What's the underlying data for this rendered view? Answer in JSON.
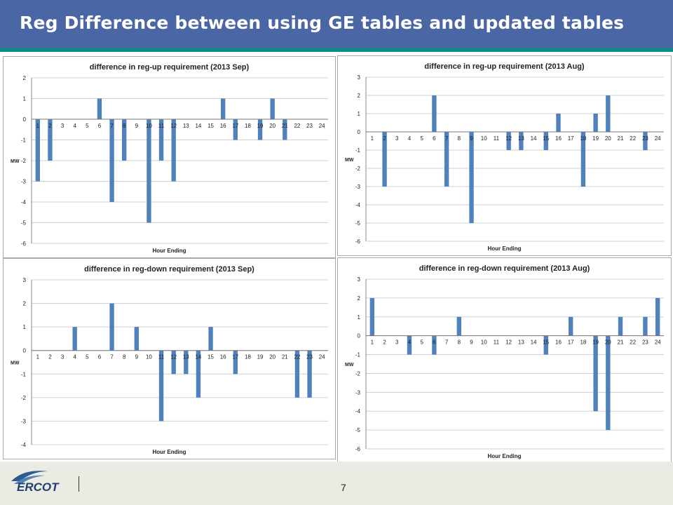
{
  "slide": {
    "title": "Reg Difference between using GE tables and updated tables",
    "page_number": "7",
    "logo_text": "ERCOT"
  },
  "colors": {
    "header": "#4a66a5",
    "accent_bar": "#128a8a",
    "bar": "#4f81bd",
    "grid": "#d0d0d0",
    "footer": "#ebebe3"
  },
  "chart_data": [
    {
      "type": "bar",
      "title": "difference in reg-up requirement (2013 Sep)",
      "xlabel": "Hour  Ending",
      "ylabel": "MW",
      "categories": [
        "1",
        "2",
        "3",
        "4",
        "5",
        "6",
        "7",
        "8",
        "9",
        "10",
        "11",
        "12",
        "13",
        "14",
        "15",
        "16",
        "17",
        "18",
        "19",
        "20",
        "21",
        "22",
        "23",
        "24"
      ],
      "values": [
        -3,
        -2,
        0,
        0,
        0,
        1,
        -4,
        -2,
        0,
        -5,
        -2,
        -3,
        0,
        0,
        0,
        1,
        -1,
        0,
        -1,
        1,
        -1,
        0,
        0,
        0
      ],
      "ylim": [
        -6,
        2
      ],
      "yticks": [
        2,
        1,
        0,
        -1,
        -2,
        -3,
        -4,
        -5,
        -6
      ],
      "grid": true
    },
    {
      "type": "bar",
      "title": "difference in reg-up requirement (2013 Aug)",
      "xlabel": "Hour  Ending",
      "ylabel": "MW",
      "categories": [
        "1",
        "2",
        "3",
        "4",
        "5",
        "6",
        "7",
        "8",
        "9",
        "10",
        "11",
        "12",
        "13",
        "14",
        "15",
        "16",
        "17",
        "18",
        "19",
        "20",
        "21",
        "22",
        "23",
        "24"
      ],
      "values": [
        0,
        -3,
        0,
        0,
        0,
        2,
        -3,
        0,
        -5,
        0,
        0,
        -1,
        -1,
        0,
        -1,
        1,
        0,
        -3,
        1,
        2,
        0,
        0,
        -1,
        0
      ],
      "ylim": [
        -6,
        3
      ],
      "yticks": [
        3,
        2,
        1,
        0,
        -1,
        -2,
        -3,
        -4,
        -5,
        -6
      ],
      "grid": true
    },
    {
      "type": "bar",
      "title": "difference in reg-down requirement (2013 Sep)",
      "xlabel": "Hour  Ending",
      "ylabel": "MW",
      "categories": [
        "1",
        "2",
        "3",
        "4",
        "5",
        "6",
        "7",
        "8",
        "9",
        "10",
        "11",
        "12",
        "13",
        "14",
        "15",
        "16",
        "17",
        "18",
        "19",
        "20",
        "21",
        "22",
        "23",
        "24"
      ],
      "values": [
        0,
        0,
        0,
        1,
        0,
        0,
        2,
        0,
        1,
        0,
        -3,
        -1,
        -1,
        -2,
        1,
        0,
        -1,
        0,
        0,
        0,
        0,
        -2,
        -2,
        0
      ],
      "ylim": [
        -4,
        3
      ],
      "yticks": [
        3,
        2,
        1,
        0,
        -1,
        -2,
        -3,
        -4
      ],
      "grid": true
    },
    {
      "type": "bar",
      "title": "difference in reg-down requirement (2013 Aug)",
      "xlabel": "Hour  Ending",
      "ylabel": "MW",
      "categories": [
        "1",
        "2",
        "3",
        "4",
        "5",
        "6",
        "7",
        "8",
        "9",
        "10",
        "11",
        "12",
        "13",
        "14",
        "15",
        "16",
        "17",
        "18",
        "19",
        "20",
        "21",
        "22",
        "23",
        "24"
      ],
      "values": [
        2,
        0,
        0,
        -1,
        0,
        -1,
        0,
        1,
        0,
        0,
        0,
        0,
        0,
        0,
        -1,
        0,
        1,
        0,
        -4,
        -5,
        1,
        0,
        1,
        2
      ],
      "ylim": [
        -6,
        3
      ],
      "yticks": [
        3,
        2,
        1,
        0,
        -1,
        -2,
        -3,
        -4,
        -5,
        -6
      ],
      "grid": true
    }
  ]
}
